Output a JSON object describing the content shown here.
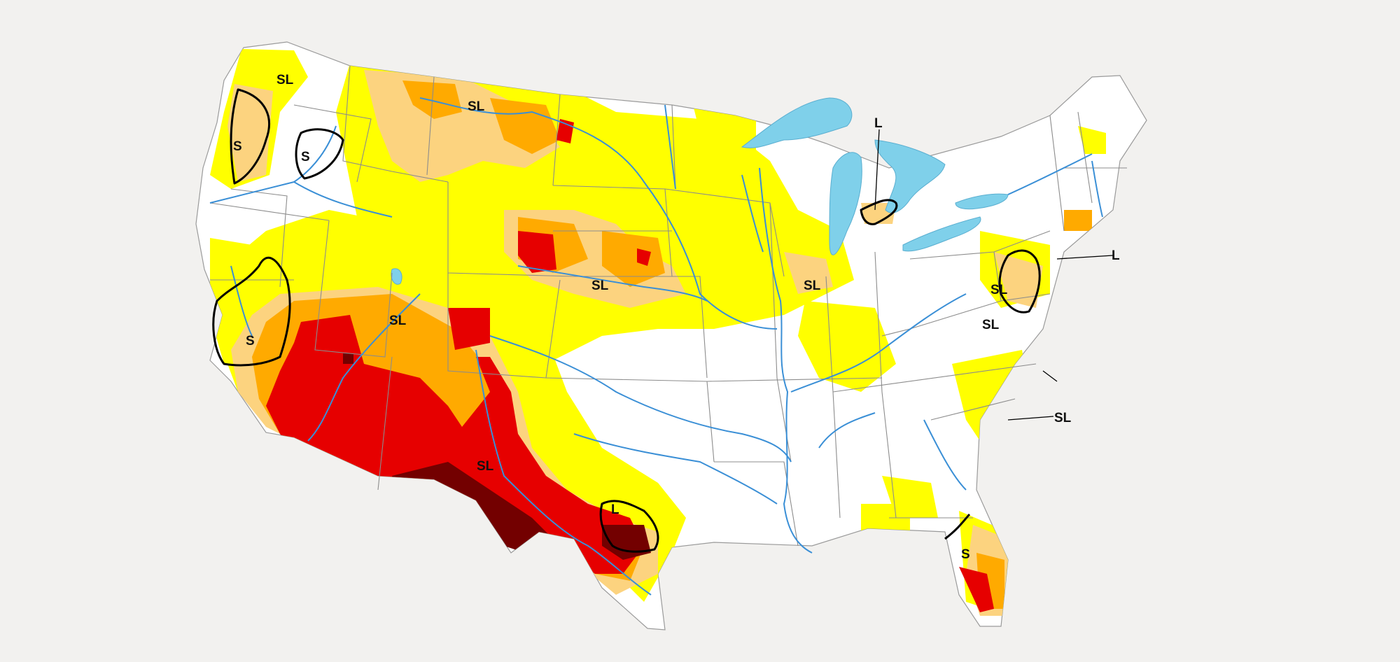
{
  "map": {
    "colors": {
      "background": "#f2f1ef",
      "land": "#ffffff",
      "D0": "#ffff00",
      "D1": "#fcd37f",
      "D2": "#ffaa00",
      "D3": "#e60000",
      "D4": "#730000",
      "water": "#7fd0ea",
      "rivers": "#3a8fd6",
      "boundaries": "#8c8c8c"
    },
    "impact_labels": [
      "SL",
      "S",
      "SL",
      "S",
      "S",
      "SL",
      "SL",
      "SL",
      "SL",
      "SL",
      "L",
      "L",
      "S",
      "L",
      "SL",
      "SL"
    ]
  }
}
